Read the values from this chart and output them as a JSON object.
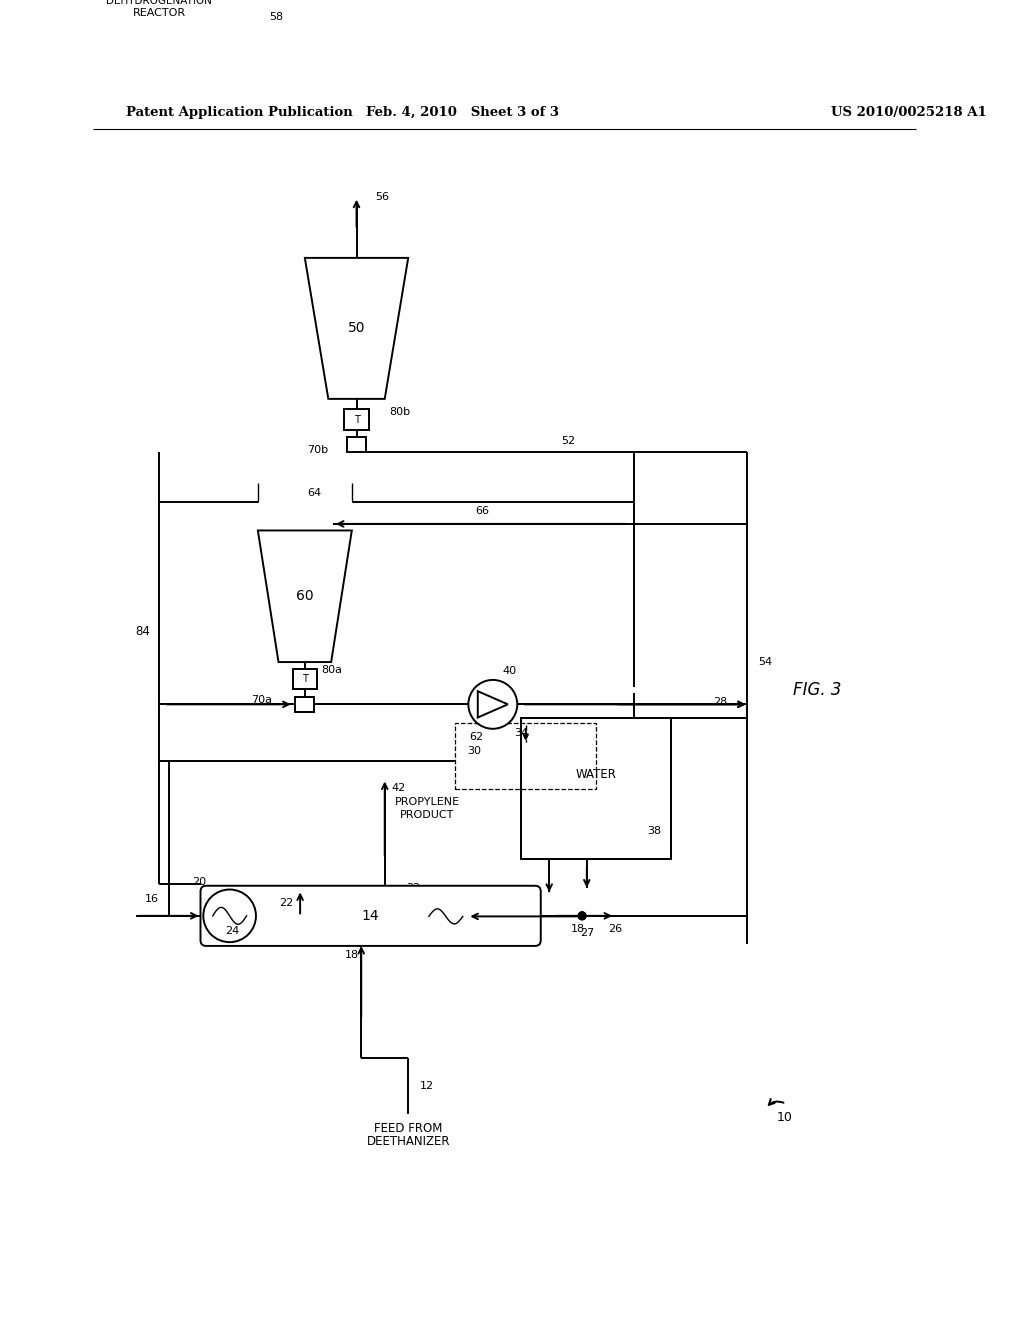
{
  "background_color": "#ffffff",
  "line_color": "#000000",
  "text_color": "#000000",
  "header_left": "Patent Application Publication",
  "header_center": "Feb. 4, 2010   Sheet 3 of 3",
  "header_right": "US 2010/0025218 A1",
  "fig_label": "FIG. 3",
  "ref_10": "10",
  "labels": {
    "feed_from_deethanizer": "FEED FROM\nDEETHANIZER",
    "from_dehydrogenation_reactor": "FROM\nDEHYDROGENATION\nREACTOR",
    "propylene_product": "PROPYLENE\nPRODUCT",
    "water": "WATER"
  }
}
